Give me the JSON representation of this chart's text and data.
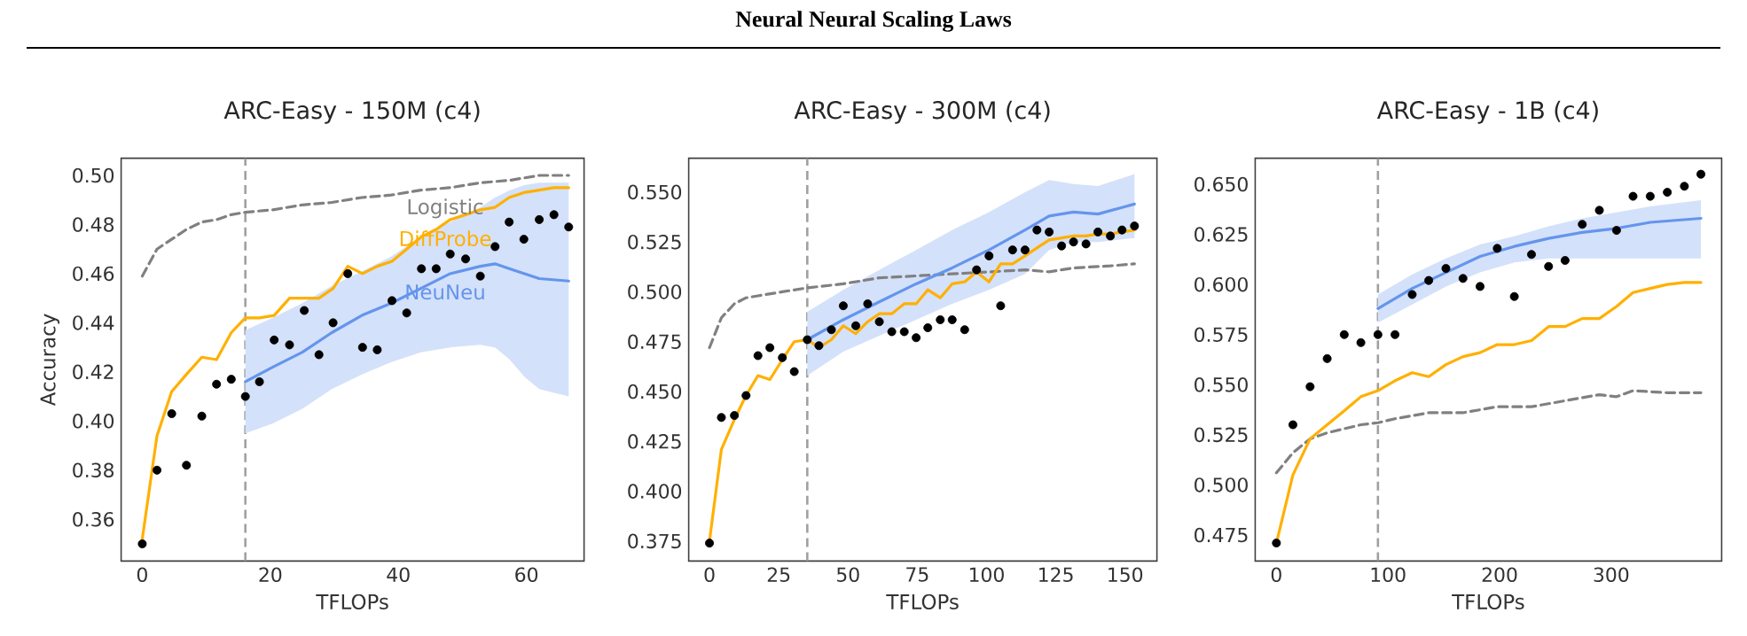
{
  "chart_data": [
    {
      "type": "other",
      "title": "Neural Neural Scaling Laws"
    },
    {
      "type": "line",
      "title": "ARC-Easy - 150M (c4)",
      "xlabel": "TFLOPs",
      "ylabel": "Accuracy",
      "xlim": [
        -3.3,
        69
      ],
      "ylim": [
        0.343,
        0.507
      ],
      "xticks": [
        0,
        20,
        40,
        60
      ],
      "yticks": [
        0.36,
        0.38,
        {
          "value": 0.4,
          "label": "0.40"
        },
        0.42,
        0.44,
        0.46,
        0.48,
        {
          "value": 0.5,
          "label": "0.50"
        }
      ],
      "ref_lines": [
        {
          "axis": "x",
          "value": 16.1,
          "color": "#a0a0a0",
          "line_style": "dashed"
        }
      ],
      "series": [
        {
          "name": "Logistic",
          "type": "line",
          "line_style": "dashed",
          "color": "#808080",
          "x": [
            0,
            2.3,
            4.6,
            6.9,
            9.3,
            11.6,
            13.9,
            16.1,
            20.4,
            25.0,
            29.6,
            34.3,
            38.9,
            43.5,
            48.1,
            52.8,
            57.4,
            62.0,
            66.6
          ],
          "values": [
            0.459,
            0.47,
            0.474,
            0.478,
            0.481,
            0.482,
            0.484,
            0.485,
            0.486,
            0.488,
            0.489,
            0.491,
            0.492,
            0.494,
            0.495,
            0.497,
            0.498,
            0.5,
            0.5
          ]
        },
        {
          "name": "DiffProbe",
          "type": "line",
          "color": "#ffb000",
          "x": [
            0,
            2.3,
            4.6,
            6.9,
            9.3,
            11.6,
            13.9,
            16.1,
            18.3,
            20.6,
            23.0,
            25.3,
            27.6,
            29.8,
            32.1,
            34.4,
            36.7,
            39.0,
            41.3,
            43.6,
            45.9,
            48.1,
            50.5,
            52.8,
            55.1,
            57.3,
            59.6,
            62.0,
            64.3,
            66.6
          ],
          "values": [
            0.352,
            0.394,
            0.412,
            0.419,
            0.426,
            0.425,
            0.436,
            0.442,
            0.442,
            0.443,
            0.45,
            0.45,
            0.45,
            0.454,
            0.463,
            0.46,
            0.463,
            0.465,
            0.47,
            0.475,
            0.478,
            0.482,
            0.484,
            0.486,
            0.487,
            0.491,
            0.493,
            0.494,
            0.495,
            0.495
          ]
        },
        {
          "name": "NeuNeu",
          "type": "line",
          "color": "#6495ed",
          "x": [
            16.1,
            20.4,
            25.0,
            29.6,
            34.3,
            38.9,
            43.5,
            48.1,
            52.8,
            55.1,
            57.4,
            59.7,
            62.0,
            66.6
          ],
          "values": [
            0.416,
            0.422,
            0.428,
            0.436,
            0.443,
            0.448,
            0.454,
            0.46,
            0.463,
            0.464,
            0.462,
            0.46,
            0.458,
            0.457
          ],
          "upper": [
            0.437,
            0.442,
            0.448,
            0.455,
            0.461,
            0.467,
            0.475,
            0.481,
            0.487,
            0.491,
            0.494,
            0.496,
            0.497,
            0.497
          ],
          "lower": [
            0.395,
            0.399,
            0.405,
            0.413,
            0.419,
            0.424,
            0.428,
            0.43,
            0.431,
            0.43,
            0.425,
            0.418,
            0.413,
            0.41
          ]
        },
        {
          "type": "scatter",
          "marker": "circle",
          "color": "#000000",
          "x": [
            0,
            2.3,
            4.6,
            6.9,
            9.3,
            11.6,
            13.9,
            16.1,
            18.3,
            20.6,
            23.0,
            25.3,
            27.6,
            29.8,
            32.1,
            34.4,
            36.7,
            39.0,
            41.3,
            43.6,
            45.9,
            48.1,
            50.5,
            52.8,
            55.1,
            57.3,
            59.6,
            62.0,
            64.3,
            66.6
          ],
          "values": [
            0.35,
            0.38,
            0.403,
            0.382,
            0.402,
            0.415,
            0.417,
            0.41,
            0.416,
            0.433,
            0.431,
            0.445,
            0.427,
            0.44,
            0.46,
            0.43,
            0.429,
            0.449,
            0.444,
            0.462,
            0.462,
            0.468,
            0.466,
            0.459,
            0.471,
            0.481,
            0.474,
            0.482,
            0.484,
            0.479
          ]
        }
      ]
    },
    {
      "type": "line",
      "title": "ARC-Easy - 300M (c4)",
      "xlabel": "TFLOPs",
      "xlim": [
        -7.5,
        161.5
      ],
      "ylim": [
        0.365,
        0.567
      ],
      "xticks": [
        0,
        25,
        50,
        75,
        100,
        125,
        150
      ],
      "yticks": [
        0.375,
        {
          "value": 0.4,
          "label": "0.400"
        },
        0.425,
        {
          "value": 0.45,
          "label": "0.450"
        },
        0.475,
        {
          "value": 0.5,
          "label": "0.500"
        },
        0.525,
        {
          "value": 0.55,
          "label": "0.550"
        }
      ],
      "ref_lines": [
        {
          "axis": "x",
          "value": 35.3,
          "color": "#a0a0a0",
          "line_style": "dashed"
        }
      ],
      "series": [
        {
          "type": "line",
          "line_style": "dashed",
          "color": "#808080",
          "x": [
            0,
            4.3,
            9.0,
            13.2,
            17.5,
            26.3,
            35.3,
            48.3,
            61.3,
            74.6,
            87.6,
            100.9,
            113.9,
            122.6,
            131.4,
            144.7,
            153.4
          ],
          "values": [
            0.472,
            0.487,
            0.494,
            0.497,
            0.498,
            0.5,
            0.502,
            0.504,
            0.507,
            0.508,
            0.509,
            0.51,
            0.511,
            0.51,
            0.512,
            0.513,
            0.514
          ]
        },
        {
          "type": "line",
          "color": "#ffb000",
          "x": [
            0,
            4.3,
            9.0,
            13.2,
            17.5,
            21.8,
            26.3,
            30.6,
            35.3,
            39.5,
            44.0,
            48.3,
            52.8,
            57.1,
            61.3,
            65.8,
            70.3,
            74.6,
            78.8,
            83.3,
            87.6,
            92.1,
            96.4,
            100.9,
            105.1,
            109.4,
            113.9,
            118.2,
            122.6,
            127.1,
            131.4,
            135.9,
            140.2,
            144.7,
            148.9,
            153.4
          ],
          "values": [
            0.375,
            0.421,
            0.436,
            0.448,
            0.458,
            0.456,
            0.466,
            0.475,
            0.476,
            0.472,
            0.476,
            0.483,
            0.479,
            0.485,
            0.489,
            0.489,
            0.494,
            0.494,
            0.501,
            0.497,
            0.504,
            0.505,
            0.51,
            0.505,
            0.514,
            0.514,
            0.518,
            0.522,
            0.526,
            0.527,
            0.528,
            0.528,
            0.529,
            0.529,
            0.53,
            0.531
          ]
        },
        {
          "type": "line",
          "color": "#6495ed",
          "x": [
            35.3,
            48.3,
            61.3,
            74.6,
            87.6,
            100.9,
            113.9,
            122.6,
            131.4,
            140.2,
            153.4
          ],
          "values": [
            0.476,
            0.486,
            0.495,
            0.504,
            0.512,
            0.521,
            0.531,
            0.538,
            0.54,
            0.539,
            0.544
          ],
          "upper": [
            0.49,
            0.501,
            0.511,
            0.521,
            0.531,
            0.54,
            0.55,
            0.556,
            0.554,
            0.553,
            0.559
          ],
          "lower": [
            0.458,
            0.47,
            0.478,
            0.486,
            0.494,
            0.501,
            0.509,
            0.521,
            0.525,
            0.525,
            0.527
          ]
        },
        {
          "type": "scatter",
          "marker": "circle",
          "color": "#000000",
          "x": [
            0,
            4.3,
            9.0,
            13.2,
            17.5,
            21.8,
            26.3,
            30.6,
            35.3,
            39.5,
            44.0,
            48.3,
            52.8,
            57.1,
            61.3,
            65.8,
            70.3,
            74.6,
            78.8,
            83.3,
            87.6,
            92.1,
            96.4,
            100.9,
            105.1,
            109.4,
            113.9,
            118.2,
            122.6,
            127.1,
            131.4,
            135.9,
            140.2,
            144.7,
            148.9,
            153.4
          ],
          "values": [
            0.374,
            0.437,
            0.438,
            0.448,
            0.468,
            0.472,
            0.467,
            0.46,
            0.476,
            0.473,
            0.481,
            0.493,
            0.483,
            0.494,
            0.485,
            0.48,
            0.48,
            0.477,
            0.482,
            0.486,
            0.486,
            0.481,
            0.511,
            0.518,
            0.493,
            0.521,
            0.521,
            0.531,
            0.53,
            0.523,
            0.525,
            0.524,
            0.53,
            0.528,
            0.531,
            0.533
          ]
        }
      ]
    },
    {
      "type": "line",
      "title": "ARC-Easy - 1B (c4)",
      "xlabel": "TFLOPs",
      "xlim": [
        -19,
        399
      ],
      "ylim": [
        0.462,
        0.663
      ],
      "xticks": [
        0,
        100,
        200,
        300
      ],
      "yticks": [
        0.475,
        {
          "value": 0.5,
          "label": "0.500"
        },
        0.525,
        {
          "value": 0.55,
          "label": "0.550"
        },
        0.575,
        {
          "value": 0.6,
          "label": "0.600"
        },
        0.625,
        {
          "value": 0.65,
          "label": "0.650"
        }
      ],
      "ref_lines": [
        {
          "axis": "x",
          "value": 91.0,
          "color": "#a0a0a0",
          "line_style": "dashed"
        }
      ],
      "series": [
        {
          "type": "line",
          "line_style": "dashed",
          "color": "#808080",
          "x": [
            0,
            14.8,
            30.2,
            45.5,
            75.7,
            91.0,
            106.3,
            136.5,
            167.2,
            197.9,
            228.6,
            258.7,
            289.4,
            304.8,
            319.6,
            350.3,
            380.4
          ],
          "values": [
            0.506,
            0.516,
            0.523,
            0.526,
            0.53,
            0.531,
            0.533,
            0.536,
            0.536,
            0.539,
            0.539,
            0.542,
            0.545,
            0.544,
            0.547,
            0.546,
            0.546
          ]
        },
        {
          "type": "line",
          "color": "#ffb000",
          "x": [
            0,
            14.8,
            30.2,
            45.5,
            60.8,
            75.7,
            91.0,
            106.3,
            121.7,
            136.5,
            151.9,
            167.2,
            182.5,
            197.9,
            213.2,
            228.6,
            243.9,
            258.7,
            274.1,
            289.4,
            304.8,
            319.6,
            335.0,
            350.3,
            365.6,
            380.4
          ],
          "values": [
            0.471,
            0.505,
            0.523,
            0.53,
            0.537,
            0.544,
            0.547,
            0.552,
            0.556,
            0.554,
            0.56,
            0.564,
            0.566,
            0.57,
            0.57,
            0.572,
            0.579,
            0.579,
            0.583,
            0.583,
            0.589,
            0.596,
            0.598,
            0.6,
            0.601,
            0.601
          ]
        },
        {
          "type": "line",
          "color": "#6495ed",
          "x": [
            91.0,
            121.7,
            151.9,
            182.5,
            213.2,
            243.9,
            274.1,
            304.8,
            335.0,
            380.4
          ],
          "values": [
            0.588,
            0.598,
            0.606,
            0.614,
            0.619,
            0.623,
            0.626,
            0.628,
            0.631,
            0.633
          ],
          "upper": [
            0.595,
            0.605,
            0.613,
            0.62,
            0.624,
            0.629,
            0.633,
            0.636,
            0.639,
            0.642
          ],
          "lower": [
            0.581,
            0.59,
            0.599,
            0.606,
            0.611,
            0.613,
            0.613,
            0.613,
            0.613,
            0.613
          ]
        },
        {
          "type": "scatter",
          "marker": "circle",
          "color": "#000000",
          "x": [
            0,
            14.8,
            30.2,
            45.5,
            60.8,
            75.7,
            91.0,
            106.3,
            121.7,
            136.5,
            151.9,
            167.2,
            182.5,
            197.9,
            213.2,
            228.6,
            243.9,
            258.7,
            274.1,
            289.4,
            304.8,
            319.6,
            335.0,
            350.3,
            365.6,
            380.4
          ],
          "values": [
            0.471,
            0.53,
            0.549,
            0.563,
            0.575,
            0.571,
            0.575,
            0.575,
            0.595,
            0.602,
            0.608,
            0.603,
            0.599,
            0.618,
            0.594,
            0.615,
            0.609,
            0.612,
            0.63,
            0.637,
            0.627,
            0.644,
            0.644,
            0.646,
            0.649,
            0.655
          ]
        }
      ]
    }
  ]
}
